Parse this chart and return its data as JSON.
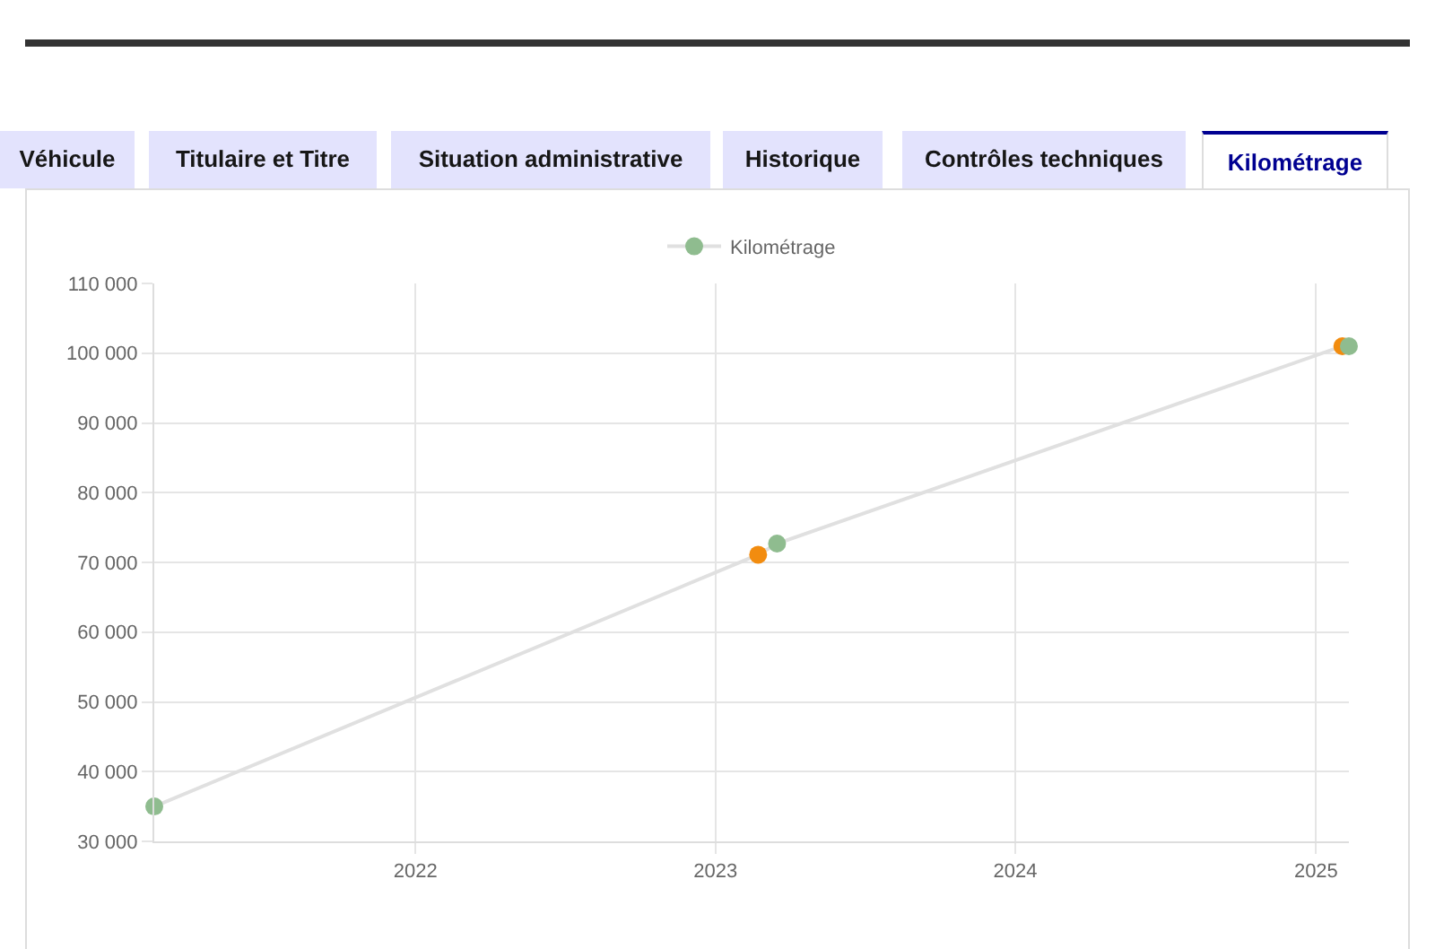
{
  "chart_data": {
    "type": "line",
    "annotations": [
      "Véhicule",
      "Titulaire et Titre",
      "Situation administrative",
      "Historique",
      "Contrôles techniques",
      "Kilométrage"
    ],
    "x": [
      "2021-02-17",
      "2023-02-22",
      "2023-03-17",
      "2025-02-02",
      "2025-02-10"
    ],
    "series": [
      {
        "name": "Kilométrage",
        "color": "#e0e0e0",
        "colors": [
          "#8fbc8f",
          "#f28c0f",
          "#8fbc8f",
          "#f28c0f",
          "#8fbc8f"
        ],
        "values": [
          35000,
          71100,
          72700,
          101000,
          101000
        ]
      }
    ],
    "xlim": [
      "2021-02-17",
      "2025-02-10"
    ],
    "xticks": [
      "2022",
      "2023",
      "2024",
      "2025"
    ],
    "ylim": [
      30000,
      110000
    ],
    "yticks": [
      {
        "value": 30000,
        "label": "30 000"
      },
      {
        "value": 40000,
        "label": "40 000"
      },
      {
        "value": 50000,
        "label": "50 000"
      },
      {
        "value": 60000,
        "label": "60 000"
      },
      {
        "value": 70000,
        "label": "70 000"
      },
      {
        "value": 80000,
        "label": "80 000"
      },
      {
        "value": 90000,
        "label": "90 000"
      },
      {
        "value": 100000,
        "label": "100 000"
      },
      {
        "value": 110000,
        "label": "110 000"
      }
    ],
    "grid": true,
    "legend": "top",
    "marker": "circle",
    "line_style": "solid"
  }
}
